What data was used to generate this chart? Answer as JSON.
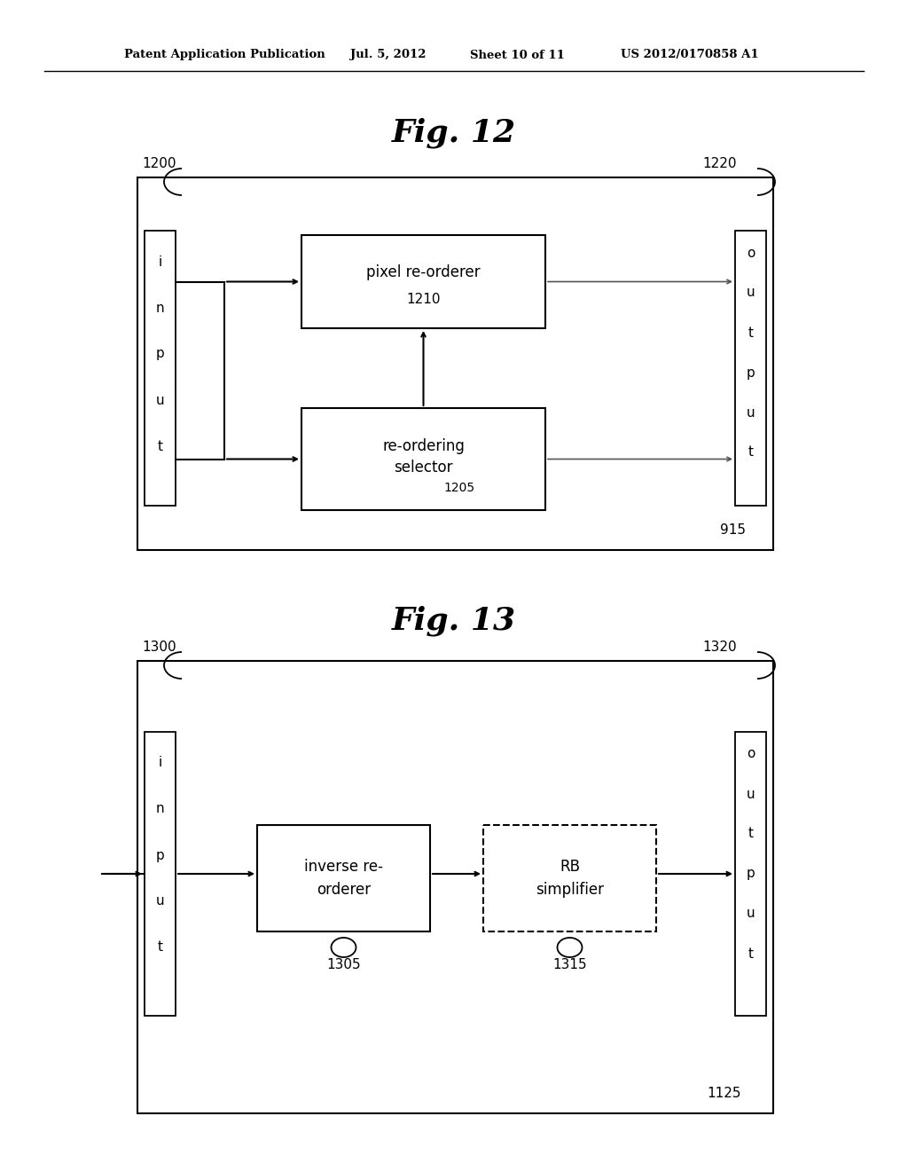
{
  "bg_color": "#ffffff",
  "header_text": "Patent Application Publication",
  "header_date": "Jul. 5, 2012",
  "header_sheet": "Sheet 10 of 11",
  "header_patent": "US 2012/0170858 A1",
  "fig12_title": "Fig. 12",
  "fig13_title": "Fig. 13",
  "fig12_label_outer": "1200",
  "fig12_label_output": "1220",
  "fig12_label_915": "915",
  "fig13_label_outer": "1300",
  "fig13_label_output": "1320",
  "fig13_label_1125": "1125"
}
